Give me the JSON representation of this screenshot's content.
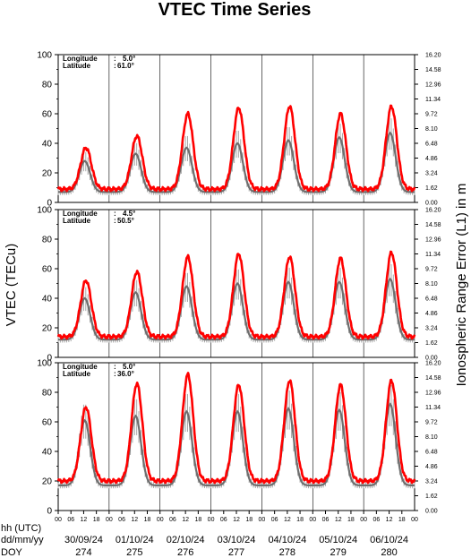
{
  "chart_data": {
    "type": "line",
    "title": "VTEC Time Series",
    "ylabel": "VTEC (TECu)",
    "ylabel_right": "Ionospheric Range Error (L1) in m",
    "ylim": [
      0,
      100
    ],
    "yticks": [
      "0",
      "20",
      "40",
      "60",
      "80",
      "100"
    ],
    "yticks_right": [
      "0.00",
      "1.62",
      "3.24",
      "4.86",
      "6.48",
      "8.10",
      "9.72",
      "11.34",
      "12.96",
      "14.58",
      "16.20"
    ],
    "xaxis_rows": [
      {
        "label": "hh (UTC)"
      },
      {
        "label": "dd/mm/yy"
      },
      {
        "label": "DOY"
      }
    ],
    "hour_ticks": [
      "00",
      "06",
      "12",
      "18"
    ],
    "days": [
      {
        "date": "30/09/24",
        "doy": "274"
      },
      {
        "date": "01/10/24",
        "doy": "275"
      },
      {
        "date": "02/10/24",
        "doy": "276"
      },
      {
        "date": "03/10/24",
        "doy": "277"
      },
      {
        "date": "04/10/24",
        "doy": "278"
      },
      {
        "date": "05/10/24",
        "doy": "279"
      },
      {
        "date": "06/10/24",
        "doy": "280"
      }
    ],
    "panels": [
      {
        "longitude_label": "Longitude",
        "longitude_value": "5.0°",
        "latitude_label": "Latitude",
        "latitude_value": "61.0°",
        "series": [
          {
            "base": 9,
            "peaks": [
              37,
              45,
              60,
              64,
              65,
              60,
              65
            ]
          },
          {
            "base": 7,
            "peaks": [
              28,
              33,
              37,
              40,
              42,
              44,
              47
            ]
          }
        ]
      },
      {
        "longitude_label": "Longitude",
        "longitude_value": "4.5°",
        "latitude_label": "Latitude",
        "latitude_value": "50.5°",
        "series": [
          {
            "base": 14,
            "peaks": [
              52,
              58,
              68,
              70,
              68,
              67,
              71
            ]
          },
          {
            "base": 12,
            "peaks": [
              40,
              44,
              48,
              50,
              51,
              51,
              53
            ]
          }
        ]
      },
      {
        "longitude_label": "Longitude",
        "longitude_value": "5.0°",
        "latitude_label": "Latitude",
        "latitude_value": "36.0°",
        "series": [
          {
            "base": 20,
            "peaks": [
              70,
              86,
              92,
              85,
              88,
              85,
              88
            ]
          },
          {
            "base": 17,
            "peaks": [
              61,
              64,
              67,
              67,
              69,
              68,
              72
            ]
          }
        ]
      }
    ],
    "colors": {
      "current": "#ff0000",
      "reference": "#6e6e6e",
      "error_bar": "#a8a8a8",
      "grid": "#000000"
    }
  }
}
